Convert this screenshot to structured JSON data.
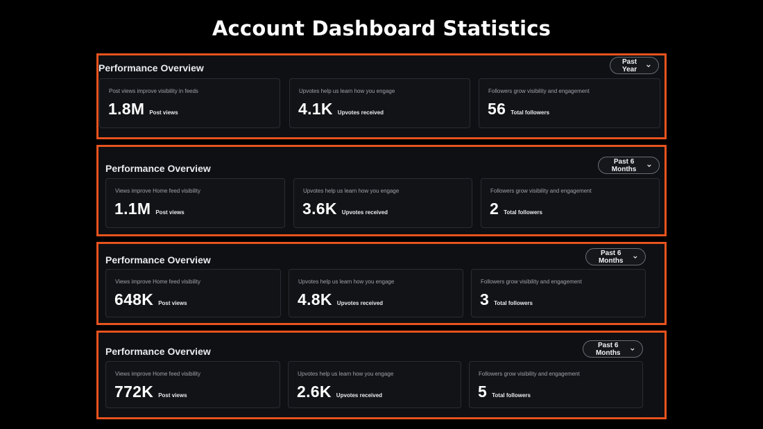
{
  "page_title": "Account Dashboard Statistics",
  "colors": {
    "accent_border": "#e8531e",
    "background": "#000000",
    "panel_bg": "#0f1013"
  },
  "panels": [
    {
      "title": "Performance Overview",
      "period": "Past Year",
      "cards": [
        {
          "desc": "Post views improve visibility in feeds",
          "value": "1.8M",
          "unit": "Post views"
        },
        {
          "desc": "Upvotes help us learn how you engage",
          "value": "4.1K",
          "unit": "Upvotes received"
        },
        {
          "desc": "Followers grow visibility and engagement",
          "value": "56",
          "unit": "Total followers"
        }
      ]
    },
    {
      "title": "Performance Overview",
      "period": "Past 6 Months",
      "cards": [
        {
          "desc": "Views improve Home feed visibility",
          "value": "1.1M",
          "unit": "Post views"
        },
        {
          "desc": "Upvotes help us learn how you engage",
          "value": "3.6K",
          "unit": "Upvotes received"
        },
        {
          "desc": "Followers grow visibility and engagement",
          "value": "2",
          "unit": "Total followers"
        }
      ]
    },
    {
      "title": "Performance Overview",
      "period": "Past 6 Months",
      "cards": [
        {
          "desc": "Views improve Home feed visibility",
          "value": "648K",
          "unit": "Post views"
        },
        {
          "desc": "Upvotes help us learn how you engage",
          "value": "4.8K",
          "unit": "Upvotes received"
        },
        {
          "desc": "Followers grow visibility and engagement",
          "value": "3",
          "unit": "Total followers"
        }
      ]
    },
    {
      "title": "Performance Overview",
      "period": "Past 6 Months",
      "cards": [
        {
          "desc": "Views improve Home feed visibility",
          "value": "772K",
          "unit": "Post views"
        },
        {
          "desc": "Upvotes help us learn how you engage",
          "value": "2.6K",
          "unit": "Upvotes received"
        },
        {
          "desc": "Followers grow visibility and engagement",
          "value": "5",
          "unit": "Total followers"
        }
      ]
    }
  ]
}
